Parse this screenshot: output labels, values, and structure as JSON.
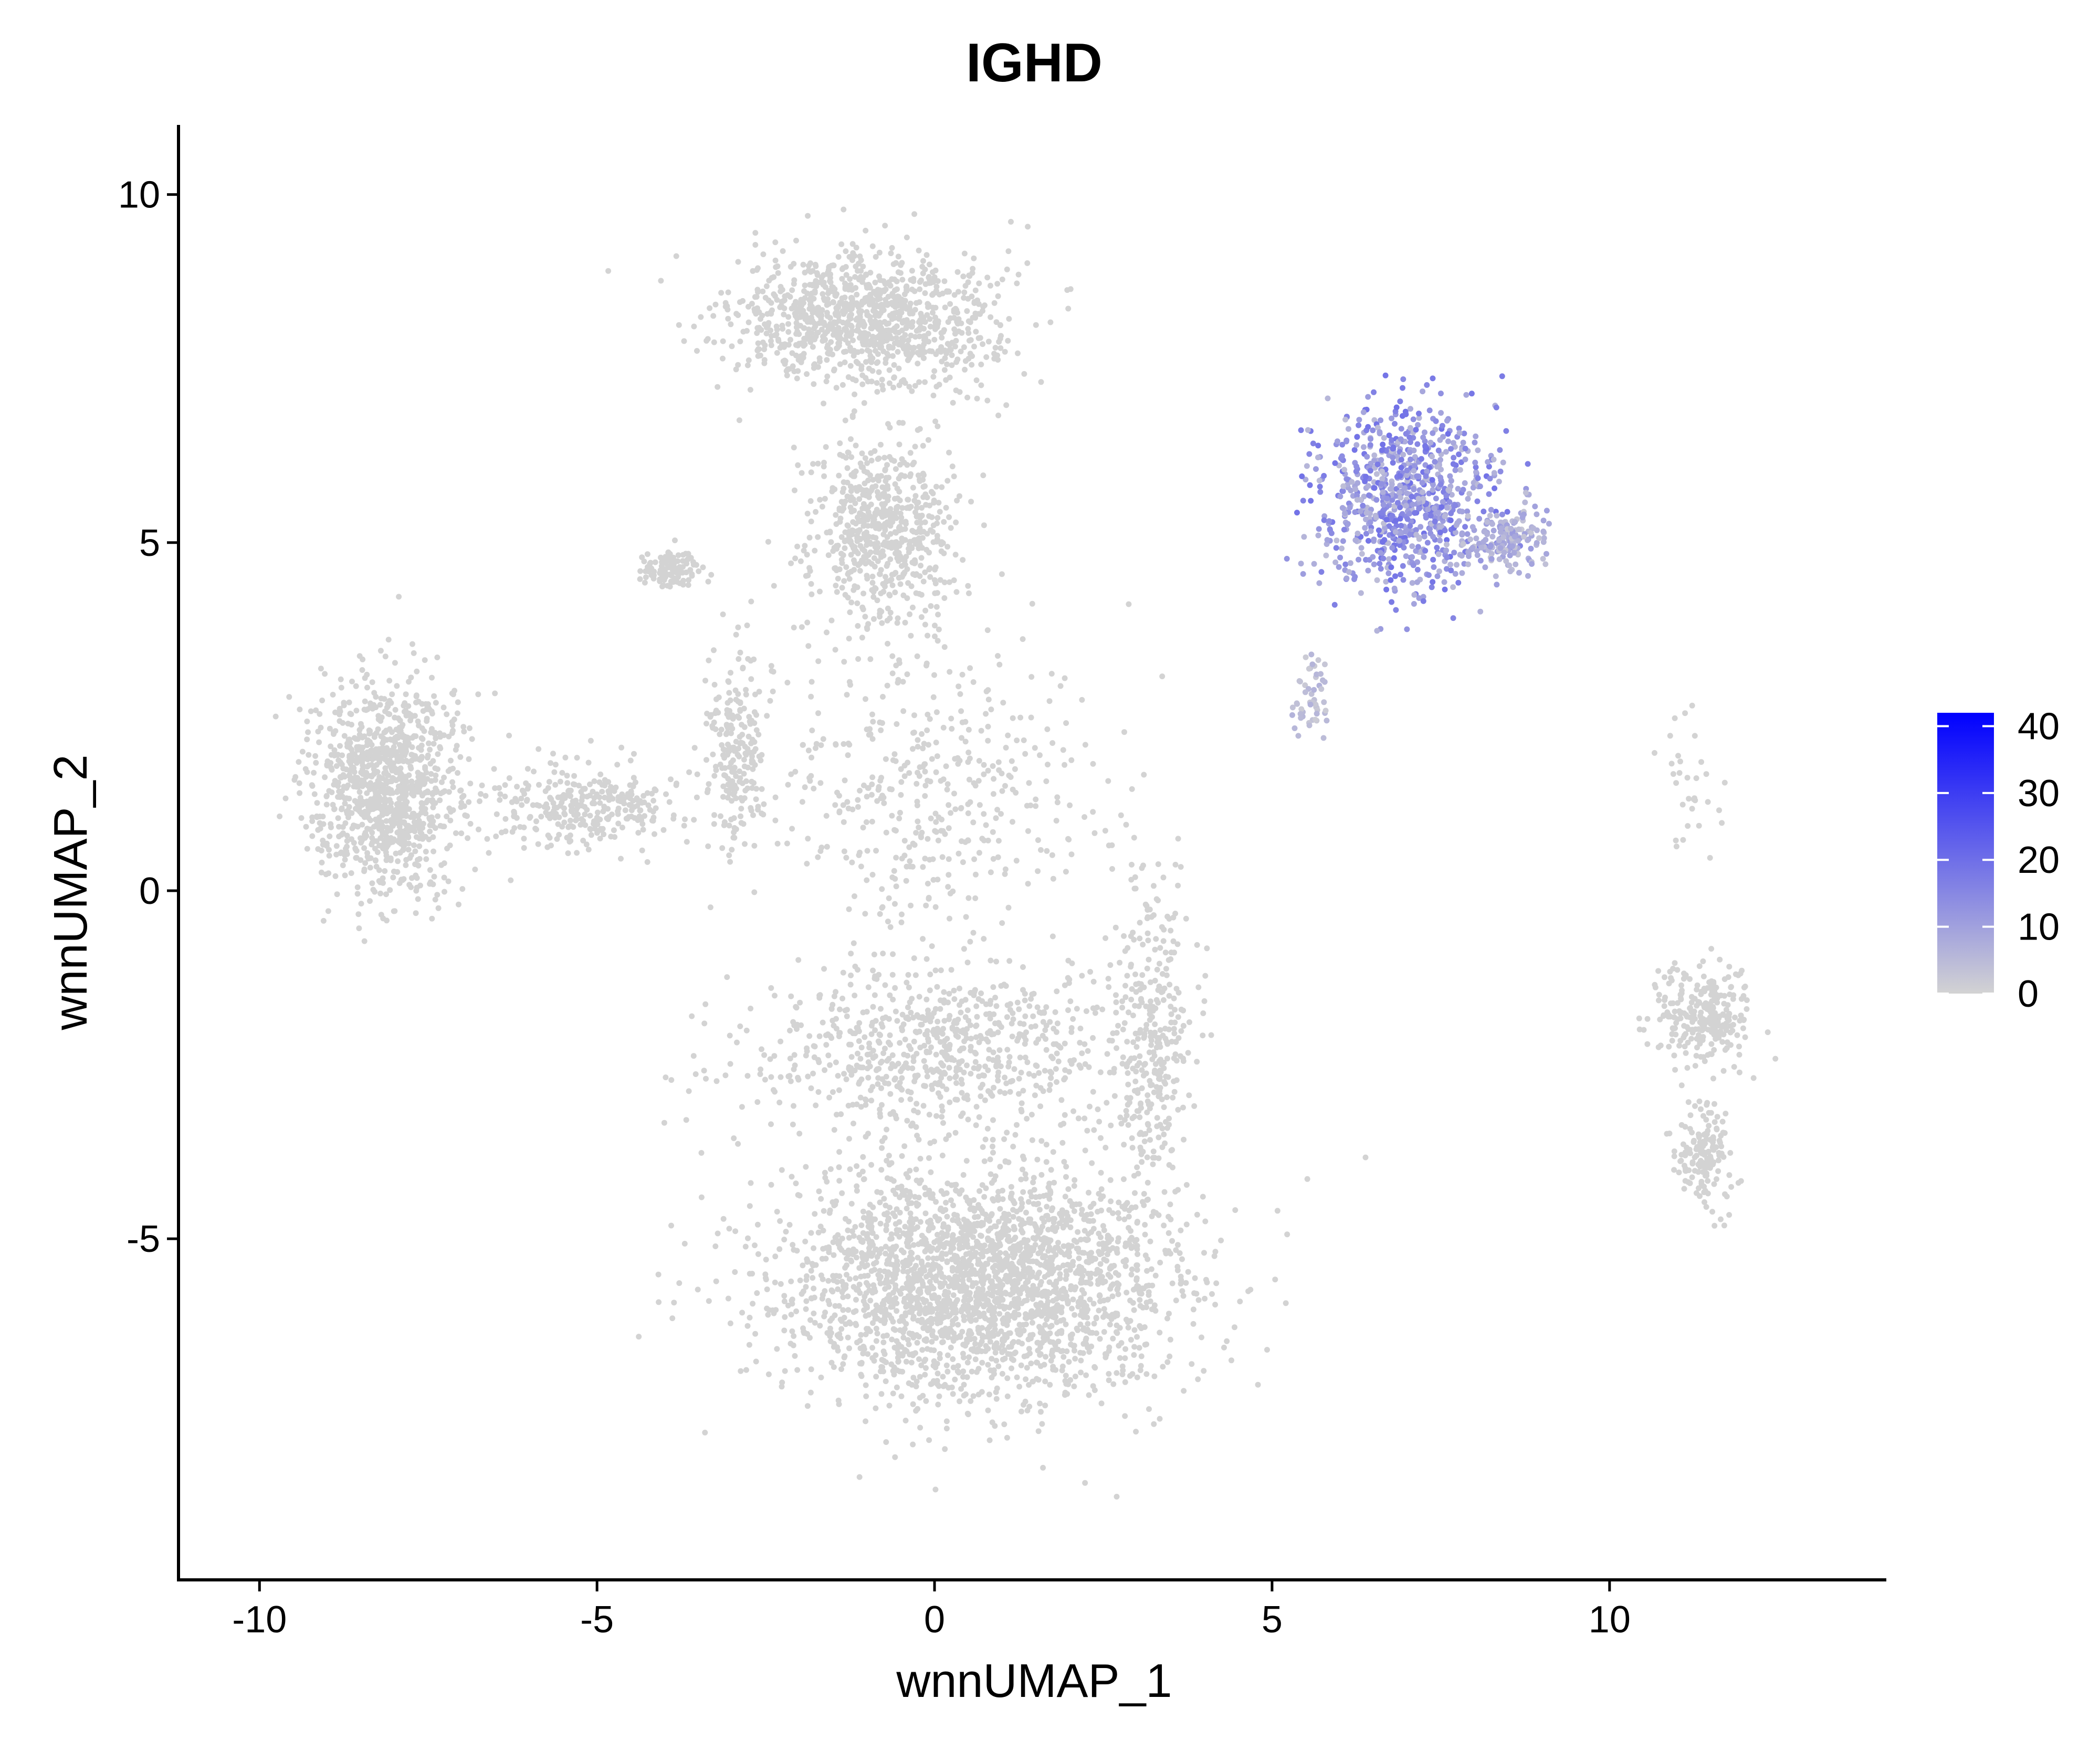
{
  "chart_data": {
    "type": "scatter",
    "title": "IGHD",
    "xlabel": "wnnUMAP_1",
    "ylabel": "wnnUMAP_2",
    "xlim": [
      -11.2,
      14.1
    ],
    "ylim": [
      -9.9,
      11.0
    ],
    "x_ticks": [
      -10,
      -5,
      0,
      5,
      10
    ],
    "y_ticks": [
      -5,
      0,
      5,
      10
    ],
    "x_tick_labels": [
      "-10",
      "-5",
      "0",
      "5",
      "10"
    ],
    "y_tick_labels": [
      "-5",
      "0",
      "5",
      "10"
    ],
    "grid": false,
    "point_color_low": "#d3d3d3",
    "point_color_high": "#0000ff",
    "colorbar": {
      "min": 0,
      "max": 42,
      "ticks": [
        0,
        10,
        20,
        30,
        40
      ],
      "tick_labels": [
        "0",
        "10",
        "20",
        "30",
        "40"
      ],
      "placement": "right"
    },
    "clusters": [
      {
        "name": "top-central",
        "center": [
          -1.0,
          8.2
        ],
        "spread": [
          1.6,
          0.8
        ],
        "weight": 10,
        "expr": 0
      },
      {
        "name": "central-neck",
        "center": [
          -0.8,
          5.2
        ],
        "spread": [
          0.9,
          1.2
        ],
        "weight": 6,
        "expr": 0
      },
      {
        "name": "left-ball",
        "center": [
          -8.1,
          1.5
        ],
        "spread": [
          0.9,
          1.2
        ],
        "weight": 10,
        "expr": 0
      },
      {
        "name": "left-bridge",
        "center": [
          -5.2,
          1.2
        ],
        "spread": [
          1.2,
          0.5
        ],
        "weight": 3,
        "expr": 0
      },
      {
        "name": "small-left",
        "center": [
          -3.9,
          4.6
        ],
        "spread": [
          0.35,
          0.25
        ],
        "weight": 1,
        "expr": 0
      },
      {
        "name": "mid-strip",
        "center": [
          -2.9,
          2.0
        ],
        "spread": [
          0.35,
          1.2
        ],
        "weight": 2,
        "expr": 0
      },
      {
        "name": "central-web",
        "center": [
          0.0,
          1.5
        ],
        "spread": [
          2.0,
          1.8
        ],
        "weight": 4,
        "expr": 0
      },
      {
        "name": "bottom-big",
        "center": [
          0.6,
          -5.6
        ],
        "spread": [
          2.5,
          1.4
        ],
        "weight": 24,
        "expr": 0
      },
      {
        "name": "lower-middle",
        "center": [
          0.0,
          -2.3
        ],
        "spread": [
          2.2,
          1.0
        ],
        "weight": 7,
        "expr": 0
      },
      {
        "name": "right-lower-arm",
        "center": [
          3.2,
          -2.0
        ],
        "spread": [
          0.5,
          1.8
        ],
        "weight": 3,
        "expr": 0
      },
      {
        "name": "b-cells",
        "center": [
          7.0,
          5.6
        ],
        "spread": [
          1.1,
          1.1
        ],
        "weight": 8,
        "expr": 14
      },
      {
        "name": "b-cells-right",
        "center": [
          8.5,
          5.0
        ],
        "spread": [
          0.5,
          0.35
        ],
        "weight": 1.5,
        "expr": 8
      },
      {
        "name": "b-cells-tail",
        "center": [
          5.6,
          2.8
        ],
        "spread": [
          0.25,
          0.5
        ],
        "weight": 0.5,
        "expr": 5
      },
      {
        "name": "right-top",
        "center": [
          11.4,
          -1.8
        ],
        "spread": [
          0.6,
          0.6
        ],
        "weight": 2.5,
        "expr": 0
      },
      {
        "name": "right-bottom",
        "center": [
          11.4,
          -3.8
        ],
        "spread": [
          0.35,
          0.6
        ],
        "weight": 1.5,
        "expr": 0
      },
      {
        "name": "right-specks",
        "center": [
          11.2,
          1.5
        ],
        "spread": [
          0.4,
          0.9
        ],
        "weight": 0.3,
        "expr": 0
      }
    ]
  }
}
